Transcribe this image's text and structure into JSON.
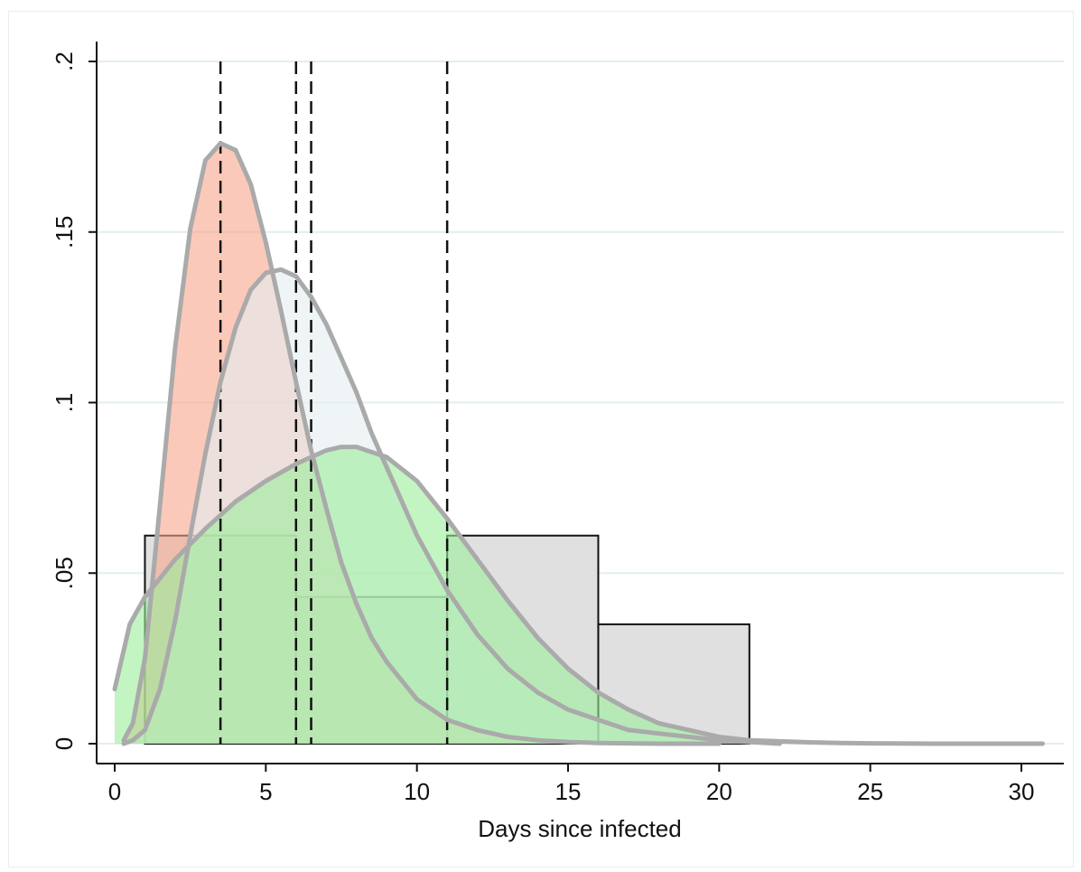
{
  "chart_data": {
    "type": "area",
    "title": "",
    "xlabel": "Days since infected",
    "ylabel": "",
    "xlim": [
      0,
      31
    ],
    "ylim": [
      0,
      0.2
    ],
    "x_ticks": [
      0,
      5,
      10,
      15,
      20,
      25,
      30
    ],
    "x_tick_labels": [
      "0",
      "5",
      "10",
      "15",
      "20",
      "25",
      "30"
    ],
    "y_ticks": [
      0,
      0.05,
      0.1,
      0.15,
      0.2
    ],
    "y_tick_labels": [
      "0",
      ".05",
      ".1",
      ".15",
      ".2"
    ],
    "grid": "horizontal",
    "legend": "none",
    "histogram": {
      "bins": [
        {
          "x0": 1,
          "x1": 6,
          "value": 0.061
        },
        {
          "x0": 6,
          "x1": 11,
          "value": 0.043
        },
        {
          "x0": 11,
          "x1": 16,
          "value": 0.061
        },
        {
          "x0": 16,
          "x1": 21,
          "value": 0.035
        }
      ],
      "fill": "#e0e0e0",
      "stroke": "#111111"
    },
    "vertical_lines": [
      3.5,
      6.0,
      6.5,
      11.0
    ],
    "series": [
      {
        "fill": "#f9a58c",
        "x": [
          0.3,
          0.6,
          1.0,
          1.5,
          2.0,
          2.5,
          3.0,
          3.5,
          4.0,
          4.5,
          5.0,
          5.5,
          6.0,
          6.5,
          7.0,
          7.5,
          8.0,
          8.5,
          9.0,
          10.0,
          11.0,
          12.0,
          13.0,
          14.0,
          15.0,
          16.0,
          17.0,
          18.0,
          20.0
        ],
        "y": [
          0.001,
          0.006,
          0.025,
          0.07,
          0.116,
          0.151,
          0.171,
          0.176,
          0.174,
          0.164,
          0.147,
          0.127,
          0.106,
          0.086,
          0.069,
          0.053,
          0.041,
          0.031,
          0.024,
          0.013,
          0.007,
          0.004,
          0.002,
          0.001,
          0.0005,
          0.0002,
          0.0001,
          0.0,
          0.0
        ]
      },
      {
        "fill": "#e4eef1",
        "x": [
          0.3,
          0.6,
          1.0,
          1.5,
          2.0,
          2.5,
          3.0,
          3.5,
          4.0,
          4.5,
          5.0,
          5.5,
          6.0,
          6.5,
          7.0,
          7.5,
          8.0,
          8.5,
          9.0,
          10.0,
          11.0,
          12.0,
          13.0,
          14.0,
          15.0,
          16.0,
          17.0,
          18.0,
          19.0,
          20.0,
          22.0
        ],
        "y": [
          0.0,
          0.001,
          0.004,
          0.016,
          0.036,
          0.061,
          0.085,
          0.106,
          0.122,
          0.133,
          0.138,
          0.139,
          0.137,
          0.131,
          0.123,
          0.113,
          0.103,
          0.091,
          0.081,
          0.061,
          0.045,
          0.032,
          0.022,
          0.015,
          0.01,
          0.007,
          0.004,
          0.003,
          0.002,
          0.001,
          0.0
        ]
      },
      {
        "fill": "#99ee99",
        "x": [
          0.0,
          0.5,
          1.0,
          2.0,
          3.0,
          4.0,
          5.0,
          6.0,
          7.0,
          7.5,
          8.0,
          9.0,
          10.0,
          11.0,
          12.0,
          13.0,
          14.0,
          15.0,
          16.0,
          17.0,
          18.0,
          19.0,
          20.0,
          21.0,
          22.0,
          23.0,
          24.0,
          25.0,
          27.0,
          29.0,
          30.7
        ],
        "y": [
          0.016,
          0.035,
          0.043,
          0.054,
          0.063,
          0.071,
          0.077,
          0.082,
          0.086,
          0.087,
          0.087,
          0.084,
          0.077,
          0.066,
          0.054,
          0.042,
          0.031,
          0.022,
          0.015,
          0.01,
          0.006,
          0.004,
          0.002,
          0.001,
          0.0007,
          0.0004,
          0.0002,
          0.0001,
          0.0,
          0.0,
          0.0
        ]
      }
    ],
    "curve_stroke": "#aaaaaa",
    "gridline_color": "#e4eeee"
  }
}
